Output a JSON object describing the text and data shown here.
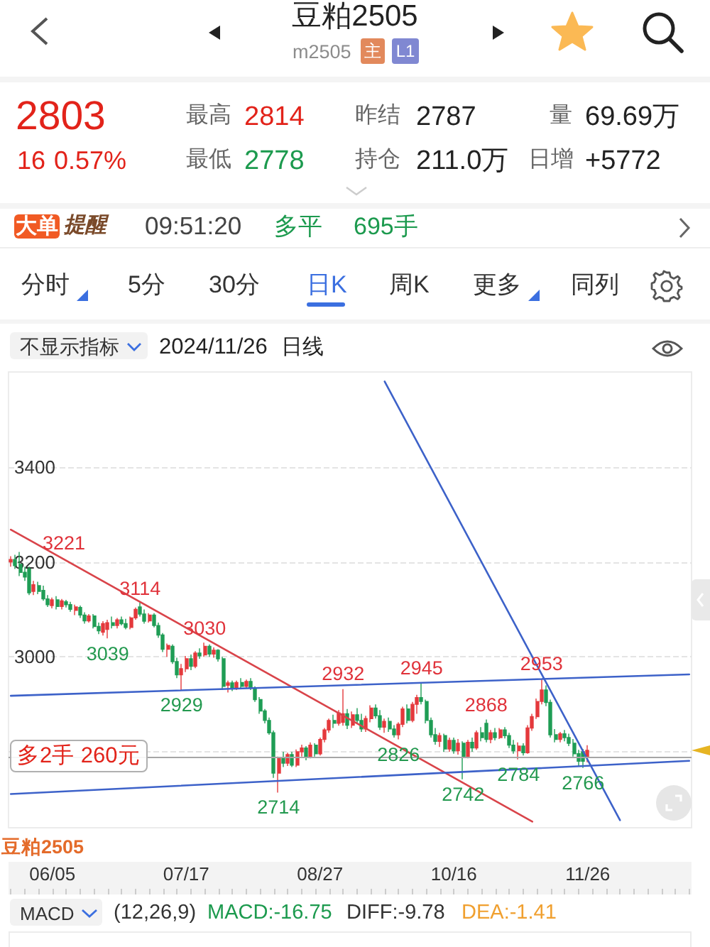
{
  "chart_data": {
    "type": "candlestick",
    "title": "豆粕2505",
    "subtitle": "m2505",
    "categories": [
      null,
      null,
      null,
      null,
      null,
      null,
      null,
      null,
      null,
      "06/05",
      null,
      null,
      null,
      null,
      null,
      null,
      null,
      null,
      null,
      null,
      null,
      null,
      null,
      null,
      null,
      null,
      null,
      null,
      null,
      null,
      null,
      null,
      null,
      null,
      null,
      null,
      null,
      null,
      "07/17",
      null,
      null,
      null,
      null,
      null,
      null,
      null,
      null,
      null,
      null,
      null,
      null,
      null,
      null,
      null,
      null,
      null,
      null,
      null,
      null,
      null,
      null,
      null,
      null,
      null,
      null,
      null,
      null,
      "08/27",
      null,
      null,
      null,
      null,
      null,
      null,
      null,
      null,
      null,
      null,
      null,
      null,
      null,
      null,
      null,
      null,
      null,
      null,
      null,
      null,
      null,
      null,
      null,
      null,
      null,
      null,
      null,
      null,
      "10/16",
      null,
      null,
      null,
      null,
      null,
      null,
      null,
      null,
      null,
      null,
      null,
      null,
      null,
      null,
      null,
      null,
      null,
      null,
      null,
      null,
      null,
      null,
      null,
      null,
      null,
      null,
      null,
      null,
      "11/26",
      null,
      null,
      null,
      null,
      null,
      null,
      null,
      null,
      null,
      null,
      null,
      null,
      null,
      null,
      null,
      null,
      null,
      null,
      null,
      null,
      null,
      null
    ],
    "series": [
      {
        "ohlc": [
          [
            3200,
            3212,
            3190,
            3205
          ],
          [
            3205,
            3215,
            3185,
            3192
          ],
          [
            3195,
            3221,
            3170,
            3178
          ],
          [
            3178,
            3190,
            3160,
            3168
          ],
          [
            3185,
            3190,
            3130,
            3135
          ],
          [
            3138,
            3160,
            3130,
            3152
          ],
          [
            3150,
            3158,
            3132,
            3138
          ],
          [
            3140,
            3150,
            3118,
            3122
          ],
          [
            3122,
            3130,
            3105,
            3110
          ],
          [
            3108,
            3125,
            3102,
            3120
          ],
          [
            3120,
            3128,
            3100,
            3106
          ],
          [
            3106,
            3122,
            3100,
            3118
          ],
          [
            3116,
            3120,
            3104,
            3110
          ],
          [
            3110,
            3116,
            3095,
            3100
          ],
          [
            3098,
            3110,
            3088,
            3105
          ],
          [
            3104,
            3108,
            3082,
            3088
          ],
          [
            3088,
            3094,
            3070,
            3076
          ],
          [
            3076,
            3090,
            3072,
            3086
          ],
          [
            3086,
            3090,
            3060,
            3064
          ],
          [
            3064,
            3072,
            3048,
            3055
          ],
          [
            3052,
            3075,
            3045,
            3070
          ],
          [
            3058,
            3078,
            3039,
            3072
          ],
          [
            3072,
            3085,
            3060,
            3066
          ],
          [
            3066,
            3082,
            3060,
            3078
          ],
          [
            3078,
            3085,
            3066,
            3070
          ],
          [
            3070,
            3080,
            3058,
            3062
          ],
          [
            3062,
            3085,
            3058,
            3082
          ],
          [
            3082,
            3104,
            3078,
            3100
          ],
          [
            3105,
            3114,
            3085,
            3090
          ],
          [
            3090,
            3100,
            3070,
            3075
          ],
          [
            3076,
            3092,
            3072,
            3088
          ],
          [
            3088,
            3092,
            3062,
            3066
          ],
          [
            3066,
            3072,
            3040,
            3046
          ],
          [
            3046,
            3050,
            3010,
            3016
          ],
          [
            3016,
            3028,
            3000,
            3024
          ],
          [
            3022,
            3026,
            2985,
            2990
          ],
          [
            2990,
            2998,
            2955,
            2962
          ],
          [
            2962,
            2985,
            2929,
            2975
          ],
          [
            2975,
            3002,
            2968,
            2996
          ],
          [
            2996,
            3005,
            2972,
            2980
          ],
          [
            2980,
            3012,
            2976,
            3008
          ],
          [
            3008,
            3018,
            2996,
            3002
          ],
          [
            3004,
            3030,
            3000,
            3022
          ],
          [
            3022,
            3026,
            3000,
            3006
          ],
          [
            3006,
            3020,
            2998,
            3014
          ],
          [
            3014,
            3016,
            2990,
            2996
          ],
          [
            2996,
            3000,
            2930,
            2938
          ],
          [
            2940,
            2950,
            2925,
            2945
          ],
          [
            2945,
            2950,
            2928,
            2934
          ],
          [
            2934,
            2950,
            2930,
            2946
          ],
          [
            2946,
            2955,
            2933,
            2938
          ],
          [
            2938,
            2952,
            2934,
            2948
          ],
          [
            2948,
            2955,
            2930,
            2934
          ],
          [
            2934,
            2938,
            2905,
            2910
          ],
          [
            2910,
            2915,
            2880,
            2886
          ],
          [
            2886,
            2890,
            2860,
            2866
          ],
          [
            2866,
            2872,
            2836,
            2840
          ],
          [
            2840,
            2845,
            2745,
            2755
          ],
          [
            2755,
            2790,
            2714,
            2786
          ],
          [
            2786,
            2800,
            2768,
            2776
          ],
          [
            2776,
            2798,
            2770,
            2794
          ],
          [
            2794,
            2800,
            2768,
            2772
          ],
          [
            2772,
            2805,
            2768,
            2800
          ],
          [
            2800,
            2815,
            2790,
            2808
          ],
          [
            2808,
            2812,
            2782,
            2788
          ],
          [
            2788,
            2820,
            2786,
            2814
          ],
          [
            2814,
            2818,
            2790,
            2796
          ],
          [
            2796,
            2830,
            2792,
            2826
          ],
          [
            2826,
            2850,
            2820,
            2846
          ],
          [
            2846,
            2870,
            2840,
            2866
          ],
          [
            2866,
            2878,
            2850,
            2860
          ],
          [
            2860,
            2888,
            2855,
            2882
          ],
          [
            2862,
            2932,
            2855,
            2880
          ],
          [
            2880,
            2890,
            2848,
            2856
          ],
          [
            2856,
            2885,
            2850,
            2878
          ],
          [
            2878,
            2892,
            2860,
            2866
          ],
          [
            2866,
            2880,
            2842,
            2848
          ],
          [
            2848,
            2876,
            2842,
            2870
          ],
          [
            2870,
            2898,
            2862,
            2892
          ],
          [
            2892,
            2900,
            2870,
            2876
          ],
          [
            2876,
            2888,
            2846,
            2852
          ],
          [
            2852,
            2870,
            2840,
            2864
          ],
          [
            2864,
            2872,
            2842,
            2848
          ],
          [
            2848,
            2856,
            2830,
            2836
          ],
          [
            2836,
            2862,
            2826,
            2858
          ],
          [
            2858,
            2895,
            2852,
            2890
          ],
          [
            2890,
            2900,
            2860,
            2866
          ],
          [
            2866,
            2905,
            2862,
            2900
          ],
          [
            2900,
            2920,
            2880,
            2914
          ],
          [
            2914,
            2945,
            2900,
            2906
          ],
          [
            2906,
            2910,
            2860,
            2866
          ],
          [
            2866,
            2872,
            2830,
            2836
          ],
          [
            2836,
            2850,
            2815,
            2822
          ],
          [
            2822,
            2840,
            2810,
            2834
          ],
          [
            2834,
            2838,
            2800,
            2806
          ],
          [
            2806,
            2830,
            2800,
            2824
          ],
          [
            2824,
            2830,
            2796,
            2802
          ],
          [
            2802,
            2827,
            2794,
            2818
          ],
          [
            2818,
            2822,
            2742,
            2790
          ],
          [
            2790,
            2825,
            2786,
            2820
          ],
          [
            2820,
            2830,
            2800,
            2808
          ],
          [
            2808,
            2845,
            2804,
            2840
          ],
          [
            2840,
            2852,
            2822,
            2830
          ],
          [
            2860,
            2868,
            2820,
            2826
          ],
          [
            2826,
            2846,
            2818,
            2840
          ],
          [
            2840,
            2850,
            2824,
            2830
          ],
          [
            2830,
            2850,
            2827,
            2846
          ],
          [
            2846,
            2852,
            2828,
            2834
          ],
          [
            2834,
            2840,
            2808,
            2814
          ],
          [
            2814,
            2825,
            2796,
            2802
          ],
          [
            2802,
            2820,
            2784,
            2812
          ],
          [
            2812,
            2818,
            2792,
            2798
          ],
          [
            2798,
            2856,
            2796,
            2850
          ],
          [
            2850,
            2880,
            2844,
            2874
          ],
          [
            2874,
            2912,
            2869,
            2906
          ],
          [
            2906,
            2953,
            2900,
            2930
          ],
          [
            2930,
            2940,
            2896,
            2904
          ],
          [
            2904,
            2910,
            2830,
            2836
          ],
          [
            2836,
            2848,
            2820,
            2826
          ],
          [
            2826,
            2842,
            2820,
            2838
          ],
          [
            2838,
            2846,
            2822,
            2830
          ],
          [
            2830,
            2838,
            2812,
            2818
          ],
          [
            2818,
            2827,
            2790,
            2796
          ],
          [
            2796,
            2804,
            2770,
            2780
          ],
          [
            2800,
            2806,
            2766,
            2780
          ],
          [
            2788,
            2814,
            2778,
            2803
          ],
          null,
          null,
          null,
          null,
          null,
          null,
          null,
          null,
          null,
          null,
          null,
          null,
          null,
          null,
          null,
          null,
          null,
          null,
          null,
          null,
          null,
          null
        ],
        "colors": [
          "#e4393c",
          "#1f9d55",
          "#1f9d55",
          "#1f9d55",
          "#1f9d55",
          "#e4393c",
          "#1f9d55",
          "#1f9d55",
          "#1f9d55",
          "#e4393c",
          "#1f9d55",
          "#e4393c",
          "#1f9d55",
          "#1f9d55",
          "#e4393c",
          "#1f9d55",
          "#1f9d55",
          "#e4393c",
          "#1f9d55",
          "#1f9d55",
          "#e4393c",
          "#e4393c",
          "#1f9d55",
          "#e4393c",
          "#1f9d55",
          "#1f9d55",
          "#e4393c",
          "#e4393c",
          "#1f9d55",
          "#1f9d55",
          "#e4393c",
          "#1f9d55",
          "#1f9d55",
          "#1f9d55",
          "#e4393c",
          "#1f9d55",
          "#1f9d55",
          "#e4393c",
          "#e4393c",
          "#1f9d55",
          "#e4393c",
          "#1f9d55",
          "#e4393c",
          "#1f9d55",
          "#e4393c",
          "#1f9d55",
          "#1f9d55",
          "#e4393c",
          "#1f9d55",
          "#e4393c",
          "#1f9d55",
          "#e4393c",
          "#1f9d55",
          "#1f9d55",
          "#1f9d55",
          "#1f9d55",
          "#1f9d55",
          "#1f9d55",
          "#e4393c",
          "#1f9d55",
          "#e4393c",
          "#1f9d55",
          "#e4393c",
          "#e4393c",
          "#1f9d55",
          "#e4393c",
          "#1f9d55",
          "#e4393c",
          "#e4393c",
          "#e4393c",
          "#1f9d55",
          "#e4393c",
          "#e4393c",
          "#1f9d55",
          "#e4393c",
          "#1f9d55",
          "#1f9d55",
          "#e4393c",
          "#e4393c",
          "#1f9d55",
          "#1f9d55",
          "#e4393c",
          "#1f9d55",
          "#1f9d55",
          "#e4393c",
          "#e4393c",
          "#1f9d55",
          "#e4393c",
          "#e4393c",
          "#1f9d55",
          "#1f9d55",
          "#1f9d55",
          "#1f9d55",
          "#e4393c",
          "#1f9d55",
          "#e4393c",
          "#1f9d55",
          "#e4393c",
          "#1f9d55",
          "#e4393c",
          "#1f9d55",
          "#e4393c",
          "#1f9d55",
          "#1f9d55",
          "#e4393c",
          "#1f9d55",
          "#e4393c",
          "#1f9d55",
          "#1f9d55",
          "#1f9d55",
          "#e4393c",
          "#1f9d55",
          "#e4393c",
          "#e4393c",
          "#e4393c",
          "#e4393c",
          "#1f9d55",
          "#1f9d55",
          "#1f9d55",
          "#e4393c",
          "#1f9d55",
          "#1f9d55",
          "#1f9d55",
          "#1f9d55",
          "#1f9d55",
          "#e4393c",
          null,
          null,
          null,
          null,
          null,
          null,
          null,
          null,
          null,
          null,
          null,
          null,
          null,
          null,
          null,
          null,
          null,
          null,
          null,
          null,
          null,
          null
        ]
      },
      {
        "type": "line",
        "color": "#d9444a",
        "values": [
          3268,
          null,
          null,
          null,
          null,
          null,
          null,
          null,
          null,
          null,
          null,
          null,
          null,
          null,
          null,
          null,
          null,
          null,
          null,
          null,
          null,
          null,
          null,
          null,
          null,
          null,
          null,
          null,
          null,
          null,
          null,
          null,
          null,
          null,
          null,
          null,
          null,
          null,
          null,
          null,
          null,
          null,
          null,
          null,
          null,
          null,
          null,
          null,
          null,
          null,
          null,
          null,
          null,
          null,
          null,
          null,
          null,
          null,
          null,
          null,
          null,
          null,
          null,
          null,
          null,
          null,
          null,
          null,
          null,
          null,
          null,
          null,
          null,
          null,
          null,
          null,
          null,
          null,
          null,
          null,
          null,
          null,
          null,
          null,
          null,
          null,
          null,
          null,
          null,
          null,
          null,
          null,
          null,
          null,
          null,
          null,
          null,
          null,
          null,
          null,
          null,
          null,
          null,
          null,
          null,
          null,
          null,
          null,
          null,
          null,
          null,
          null,
          null,
          2653,
          null,
          null,
          null,
          null,
          null,
          null,
          null,
          null,
          null,
          null,
          null,
          null,
          null,
          null,
          null,
          null,
          null,
          null,
          null,
          null,
          null,
          null,
          null,
          null,
          null,
          null,
          null,
          null,
          null,
          null,
          null,
          null,
          null,
          null
        ]
      },
      {
        "type": "line",
        "color": "#3d62c9",
        "values": [
          2918,
          null,
          null,
          null,
          null,
          null,
          null,
          null,
          null,
          null,
          null,
          null,
          null,
          null,
          null,
          null,
          null,
          null,
          null,
          null,
          null,
          null,
          null,
          null,
          null,
          null,
          null,
          null,
          null,
          null,
          null,
          null,
          null,
          null,
          null,
          null,
          null,
          null,
          null,
          null,
          null,
          null,
          null,
          null,
          null,
          null,
          null,
          null,
          null,
          null,
          null,
          null,
          null,
          null,
          null,
          null,
          null,
          null,
          null,
          null,
          null,
          null,
          null,
          null,
          null,
          null,
          null,
          null,
          null,
          null,
          null,
          null,
          null,
          null,
          null,
          null,
          null,
          null,
          null,
          null,
          null,
          null,
          null,
          null,
          null,
          null,
          null,
          null,
          null,
          null,
          null,
          null,
          null,
          null,
          null,
          null,
          null,
          null,
          null,
          null,
          null,
          null,
          null,
          null,
          null,
          null,
          null,
          null,
          null,
          null,
          null,
          null,
          null,
          null,
          null,
          null,
          null,
          null,
          null,
          null,
          null,
          null,
          null,
          null,
          null,
          null,
          null,
          null,
          null,
          null,
          null,
          null,
          null,
          null,
          null,
          null,
          null,
          null,
          null,
          null,
          null,
          null,
          null,
          null,
          null,
          null,
          null,
          2963
        ]
      },
      {
        "type": "line",
        "color": "#3d62c9",
        "values": [
          2711,
          null,
          null,
          null,
          null,
          null,
          null,
          null,
          null,
          null,
          null,
          null,
          null,
          null,
          null,
          null,
          null,
          null,
          null,
          null,
          null,
          null,
          null,
          null,
          null,
          null,
          null,
          null,
          null,
          null,
          null,
          null,
          null,
          null,
          null,
          null,
          null,
          null,
          null,
          null,
          null,
          null,
          null,
          null,
          null,
          null,
          null,
          null,
          null,
          null,
          null,
          null,
          null,
          null,
          null,
          null,
          null,
          null,
          null,
          null,
          null,
          null,
          null,
          null,
          null,
          null,
          null,
          null,
          null,
          null,
          null,
          null,
          null,
          null,
          null,
          null,
          null,
          null,
          null,
          null,
          null,
          null,
          null,
          null,
          null,
          null,
          null,
          null,
          null,
          null,
          null,
          null,
          null,
          null,
          null,
          null,
          null,
          null,
          null,
          null,
          null,
          null,
          null,
          null,
          null,
          null,
          null,
          null,
          null,
          null,
          null,
          null,
          null,
          null,
          null,
          null,
          null,
          null,
          null,
          null,
          null,
          null,
          null,
          null,
          null,
          null,
          null,
          null,
          null,
          null,
          null,
          null,
          null,
          null,
          null,
          null,
          null,
          null,
          null,
          null,
          null,
          null,
          null,
          null,
          null,
          null,
          null,
          2781
        ]
      },
      {
        "type": "line",
        "color": "#3d62c9",
        "values": [
          null,
          null,
          null,
          null,
          null,
          null,
          null,
          null,
          null,
          null,
          null,
          null,
          null,
          null,
          null,
          null,
          null,
          null,
          null,
          null,
          null,
          null,
          null,
          null,
          null,
          null,
          null,
          null,
          null,
          null,
          null,
          null,
          null,
          null,
          null,
          null,
          null,
          null,
          null,
          null,
          null,
          null,
          null,
          null,
          null,
          null,
          null,
          null,
          null,
          null,
          null,
          null,
          null,
          null,
          null,
          null,
          null,
          null,
          null,
          null,
          null,
          null,
          null,
          null,
          null,
          null,
          null,
          null,
          null,
          null,
          null,
          null,
          null,
          null,
          null,
          null,
          null,
          null,
          null,
          null,
          null,
          3580,
          null,
          null,
          null,
          null,
          null,
          null,
          null,
          null,
          null,
          null,
          null,
          null,
          null,
          null,
          null,
          null,
          null,
          null,
          null,
          null,
          null,
          null,
          null,
          null,
          null,
          null,
          null,
          null,
          null,
          null,
          null,
          null,
          null,
          null,
          null,
          null,
          null,
          null,
          null,
          null,
          null,
          null,
          null,
          null,
          null,
          null,
          null,
          null,
          null,
          null,
          2656,
          null,
          null,
          null,
          null,
          null,
          null,
          null,
          null,
          null,
          null,
          null,
          null,
          null,
          null,
          null
        ]
      }
    ],
    "ylim": [
      2640,
      3600
    ],
    "yticks": [
      {
        "value": 2800,
        "label": null
      },
      3000,
      3200,
      3400
    ],
    "grid": "y",
    "ref_lines": [
      {
        "axis": "y",
        "value": 2790,
        "label": "多2手 260元",
        "color": "#a6a6a6"
      }
    ],
    "annotations": [
      "主",
      "L1",
      "2803",
      "16",
      "0.57%",
      "最高",
      "2814",
      "最低",
      "2778",
      "昨结",
      "2787",
      "持仓",
      "211.0万",
      "量",
      "69.69万",
      "日增",
      "+5772",
      "大单",
      "提醒",
      "09:51:20",
      "多平",
      "695手",
      "分时",
      "5分",
      "30分",
      "日K",
      "周K",
      "更多",
      "同列",
      "不显示指标",
      "2024/11/26",
      "日线",
      "豆粕2505",
      "MACD",
      "(12,26,9)",
      "MACD:-16.75",
      "DIFF:-9.78",
      "DEA:-1.41",
      "3221",
      {
        "text": "3114",
        "y": 3114
      },
      {
        "text": "3039",
        "y": 3039
      },
      {
        "text": "3030",
        "y": 3030
      },
      {
        "text": "2929",
        "y": 2929
      },
      {
        "text": "2714",
        "y": 2714
      },
      {
        "text": "2932",
        "y": 2932
      },
      {
        "text": "2826",
        "y": 2826
      },
      {
        "text": "2945",
        "y": 2945
      },
      {
        "text": "2742",
        "y": 2742
      },
      {
        "text": "2868",
        "y": 2868
      },
      {
        "text": "2784",
        "y": 2784
      },
      {
        "text": "2953",
        "y": 2953
      },
      {
        "text": "2766",
        "y": 2766
      }
    ]
  }
}
